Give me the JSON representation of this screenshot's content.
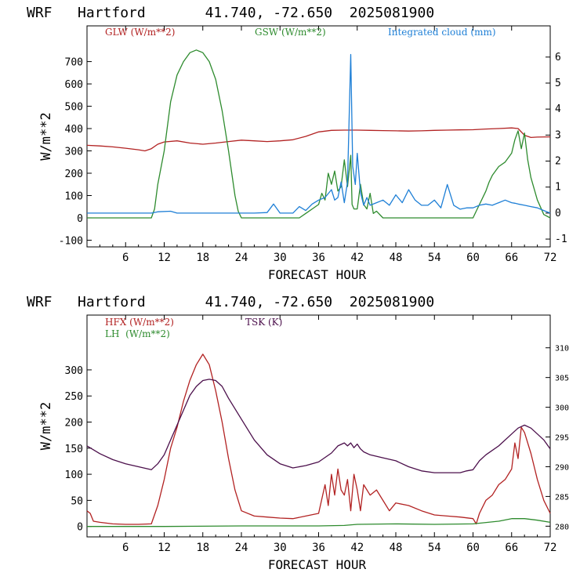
{
  "chart_data": [
    {
      "type": "line",
      "title": "WRF   Hartford       41.740, -72.650  2025081900",
      "xlabel": "FORECAST HOUR",
      "ylabel": "W/m**2",
      "xlim": [
        0,
        72
      ],
      "ylim": [
        -130,
        860
      ],
      "y2lim": [
        -1.3,
        7.2
      ],
      "x_ticks": [
        6,
        12,
        18,
        24,
        30,
        36,
        42,
        48,
        54,
        60,
        66,
        72
      ],
      "y_ticks": [
        -100,
        0,
        100,
        200,
        300,
        400,
        500,
        600,
        700
      ],
      "y2_ticks": [
        -1,
        0,
        1,
        2,
        3,
        4,
        5,
        6
      ],
      "series": [
        {
          "name": "GLW (W/m**2)",
          "color": "#b22222",
          "axis": "left",
          "x": [
            0,
            2,
            4,
            6,
            8,
            9,
            10,
            11,
            12,
            14,
            16,
            18,
            20,
            22,
            24,
            26,
            28,
            30,
            32,
            34,
            36,
            38,
            40,
            42,
            44,
            46,
            48,
            50,
            52,
            54,
            56,
            58,
            60,
            62,
            64,
            66,
            67,
            68,
            69,
            70,
            72
          ],
          "y": [
            325,
            322,
            318,
            312,
            305,
            300,
            310,
            330,
            340,
            345,
            335,
            330,
            335,
            342,
            348,
            345,
            342,
            345,
            350,
            365,
            385,
            392,
            393,
            393,
            392,
            391,
            390,
            389,
            390,
            392,
            393,
            394,
            395,
            398,
            400,
            403,
            400,
            370,
            360,
            362,
            363
          ]
        },
        {
          "name": "GSW (W/m**2)",
          "color": "#2e8b2e",
          "axis": "left",
          "x": [
            0,
            10,
            10.5,
            11,
            12,
            13,
            14,
            15,
            16,
            17,
            18,
            19,
            20,
            21,
            22,
            23,
            23.5,
            24,
            33,
            34,
            35,
            36,
            36.5,
            37,
            37.5,
            38,
            38.5,
            39,
            39.5,
            40,
            40.5,
            41,
            41.2,
            41.5,
            42,
            42.5,
            43,
            43.5,
            44,
            44.5,
            45,
            46,
            60,
            60.5,
            61,
            62,
            62.5,
            63,
            64,
            65,
            66,
            66.5,
            67,
            67.5,
            68,
            68.5,
            69,
            70,
            71,
            72
          ],
          "y": [
            0,
            0,
            40,
            150,
            300,
            520,
            640,
            700,
            740,
            752,
            740,
            700,
            620,
            480,
            300,
            100,
            30,
            0,
            0,
            20,
            40,
            60,
            110,
            80,
            200,
            150,
            210,
            120,
            140,
            260,
            140,
            280,
            60,
            40,
            40,
            150,
            60,
            40,
            110,
            20,
            30,
            0,
            0,
            30,
            60,
            120,
            160,
            190,
            230,
            250,
            290,
            350,
            390,
            310,
            380,
            260,
            180,
            80,
            15,
            0
          ]
        },
        {
          "name": "Integrated cloud (mm)",
          "color": "#1e7fd6",
          "axis": "right",
          "x": [
            0,
            10,
            11,
            13,
            14,
            24,
            26,
            28,
            29,
            30,
            31,
            32,
            33,
            34,
            35,
            36,
            37,
            38,
            38.5,
            39,
            39.5,
            40,
            40.5,
            41,
            41.3,
            41.7,
            42,
            42.5,
            43,
            43.5,
            44,
            45,
            46,
            47,
            48,
            49,
            50,
            51,
            52,
            53,
            54,
            55,
            56,
            57,
            58,
            59,
            60,
            61,
            62,
            63,
            64,
            65,
            66,
            66.5,
            67,
            68,
            69,
            70,
            71,
            72
          ],
          "y": [
            0,
            0,
            0.05,
            0.07,
            0,
            0,
            0,
            0.02,
            0.35,
            0,
            0,
            0,
            0.25,
            0.1,
            0.35,
            0.5,
            0.6,
            0.9,
            0.5,
            0.6,
            1.2,
            0.4,
            1.2,
            6.1,
            1.8,
            1.1,
            2.3,
            0.8,
            0.3,
            0.6,
            0.3,
            0.4,
            0.5,
            0.3,
            0.7,
            0.4,
            0.9,
            0.5,
            0.3,
            0.3,
            0.5,
            0.2,
            1.1,
            0.3,
            0.15,
            0.2,
            0.2,
            0.3,
            0.35,
            0.3,
            0.4,
            0.5,
            0.4,
            0.38,
            0.35,
            0.3,
            0.25,
            0.2,
            0.1,
            0
          ]
        }
      ],
      "legend": [
        {
          "label": "GLW (W/m**2)",
          "color": "#b22222"
        },
        {
          "label": "GSW (W/m**2)",
          "color": "#2e8b2e"
        },
        {
          "label": "Integrated cloud (mm)",
          "color": "#1e7fd6"
        }
      ]
    },
    {
      "type": "line",
      "title": "WRF   Hartford       41.740, -72.650  2025081900",
      "xlabel": "FORECAST HOUR",
      "ylabel": "W/m**2",
      "xlim": [
        0,
        72
      ],
      "ylim": [
        -20,
        405
      ],
      "y2lim": [
        278.2,
        315.5
      ],
      "x_ticks": [
        6,
        12,
        18,
        24,
        30,
        36,
        42,
        48,
        54,
        60,
        66,
        72
      ],
      "y_ticks": [
        0,
        50,
        100,
        150,
        200,
        250,
        300
      ],
      "y2_ticks": [
        280,
        285,
        290,
        295,
        300,
        305,
        310
      ],
      "series": [
        {
          "name": "HFX (W/m**2)",
          "color": "#b22222",
          "axis": "left",
          "x": [
            0,
            0.5,
            1,
            2,
            4,
            6,
            8,
            10,
            11,
            12,
            13,
            14,
            15,
            16,
            17,
            18,
            19,
            20,
            21,
            22,
            23,
            24,
            26,
            28,
            30,
            32,
            34,
            36,
            37,
            37.5,
            38,
            38.5,
            39,
            39.5,
            40,
            40.5,
            41,
            41.5,
            42,
            42.5,
            43,
            44,
            45,
            46,
            47,
            48,
            50,
            52,
            54,
            56,
            58,
            60,
            60.5,
            61,
            62,
            63,
            64,
            65,
            66,
            66.5,
            67,
            67.5,
            68,
            69,
            70,
            71,
            72
          ],
          "y": [
            30,
            25,
            10,
            8,
            5,
            4,
            4,
            5,
            40,
            90,
            150,
            190,
            240,
            280,
            310,
            330,
            310,
            260,
            200,
            130,
            70,
            30,
            20,
            18,
            16,
            15,
            20,
            25,
            80,
            40,
            100,
            60,
            110,
            70,
            60,
            90,
            30,
            100,
            70,
            30,
            80,
            60,
            70,
            50,
            30,
            45,
            40,
            30,
            22,
            20,
            18,
            15,
            5,
            25,
            50,
            60,
            80,
            90,
            110,
            160,
            130,
            190,
            180,
            140,
            90,
            50,
            25
          ]
        },
        {
          "name": "LH (W/m**2)",
          "color": "#2e8b2e",
          "axis": "left",
          "x": [
            0,
            12,
            24,
            36,
            40,
            42,
            48,
            54,
            60,
            64,
            66,
            68,
            70,
            72
          ],
          "y": [
            0,
            0,
            1,
            1,
            2,
            4,
            5,
            4,
            5,
            10,
            15,
            15,
            12,
            8
          ]
        },
        {
          "name": "TSK (K)",
          "color": "#4b0f4b",
          "axis": "right",
          "x": [
            0,
            2,
            4,
            6,
            8,
            10,
            11,
            12,
            13,
            14,
            15,
            16,
            17,
            18,
            19,
            20,
            21,
            22,
            24,
            26,
            28,
            30,
            32,
            34,
            36,
            38,
            39,
            40,
            40.5,
            41,
            41.5,
            42,
            42.5,
            43,
            44,
            46,
            48,
            50,
            52,
            54,
            56,
            58,
            59,
            60,
            61,
            62,
            64,
            66,
            67,
            68,
            69,
            70,
            71,
            72
          ],
          "y": [
            293.5,
            292.2,
            291.2,
            290.5,
            290,
            289.5,
            290.5,
            292,
            294.5,
            297,
            299.5,
            302,
            303.5,
            304.5,
            304.7,
            304.5,
            303.5,
            301.5,
            298,
            294.5,
            292,
            290.5,
            289.8,
            290.2,
            290.8,
            292.3,
            293.5,
            294,
            293.5,
            294,
            293.2,
            293.8,
            293,
            292.5,
            292,
            291.5,
            291,
            290,
            289.3,
            289,
            289,
            289,
            289.3,
            289.5,
            291,
            292,
            293.5,
            295.5,
            296.5,
            297,
            296.5,
            295.5,
            294.5,
            293
          ]
        }
      ],
      "legend": [
        {
          "label": "HFX (W/m**2)",
          "color": "#b22222"
        },
        {
          "label": "TSK (K)",
          "color": "#4b0f4b"
        },
        {
          "label": "LH  (W/m**2)",
          "color": "#2e8b2e"
        }
      ]
    }
  ]
}
